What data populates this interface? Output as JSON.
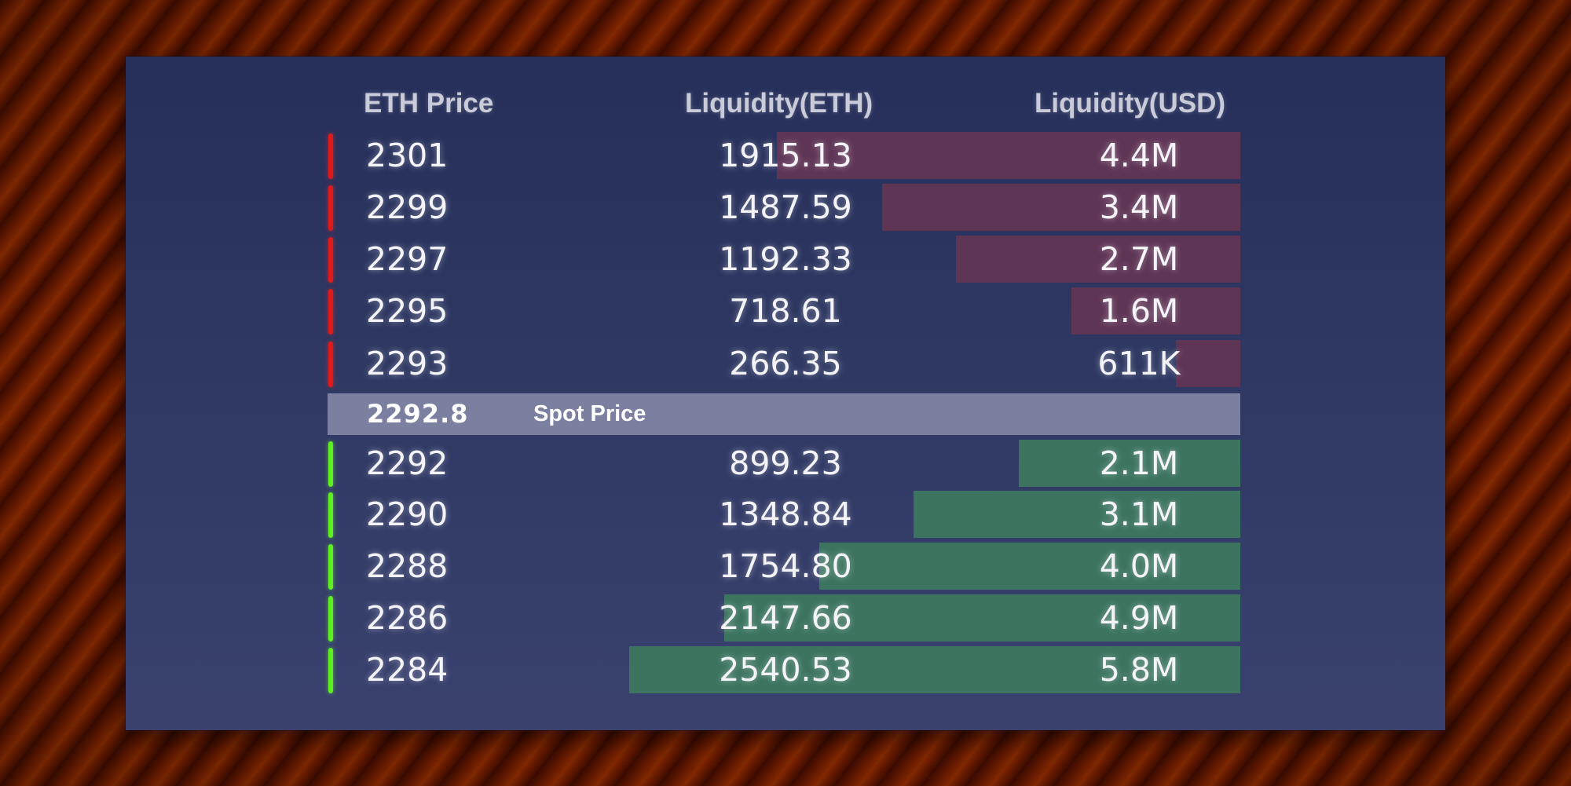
{
  "headers": {
    "eth_price": "ETH Price",
    "liquidity_eth": "Liquidity(ETH)",
    "liquidity_usd": "Liquidity(USD)"
  },
  "colors": {
    "ask_marker": "#e01a1a",
    "bid_marker": "#5ef01e",
    "ask_bar": "#5f3556",
    "bid_bar": "#3c7460",
    "spot_bar": "#7b80a0"
  },
  "asks": [
    {
      "price": "2301",
      "liquidity_eth": "1915.13",
      "liquidity_usd": "4.4M",
      "depth_usd_m": 4.4
    },
    {
      "price": "2299",
      "liquidity_eth": "1487.59",
      "liquidity_usd": "3.4M",
      "depth_usd_m": 3.4
    },
    {
      "price": "2297",
      "liquidity_eth": "1192.33",
      "liquidity_usd": "2.7M",
      "depth_usd_m": 2.7
    },
    {
      "price": "2295",
      "liquidity_eth": "718.61",
      "liquidity_usd": "1.6M",
      "depth_usd_m": 1.6
    },
    {
      "price": "2293",
      "liquidity_eth": "266.35",
      "liquidity_usd": "611K",
      "depth_usd_m": 0.611
    }
  ],
  "spot": {
    "price": "2292.8",
    "label": "Spot Price"
  },
  "bids": [
    {
      "price": "2292",
      "liquidity_eth": "899.23",
      "liquidity_usd": "2.1M",
      "depth_usd_m": 2.1
    },
    {
      "price": "2290",
      "liquidity_eth": "1348.84",
      "liquidity_usd": "3.1M",
      "depth_usd_m": 3.1
    },
    {
      "price": "2288",
      "liquidity_eth": "1754.80",
      "liquidity_usd": "4.0M",
      "depth_usd_m": 4.0
    },
    {
      "price": "2286",
      "liquidity_eth": "2147.66",
      "liquidity_usd": "4.9M",
      "depth_usd_m": 4.9
    },
    {
      "price": "2284",
      "liquidity_eth": "2540.53",
      "liquidity_usd": "5.8M",
      "depth_usd_m": 5.8
    }
  ]
}
